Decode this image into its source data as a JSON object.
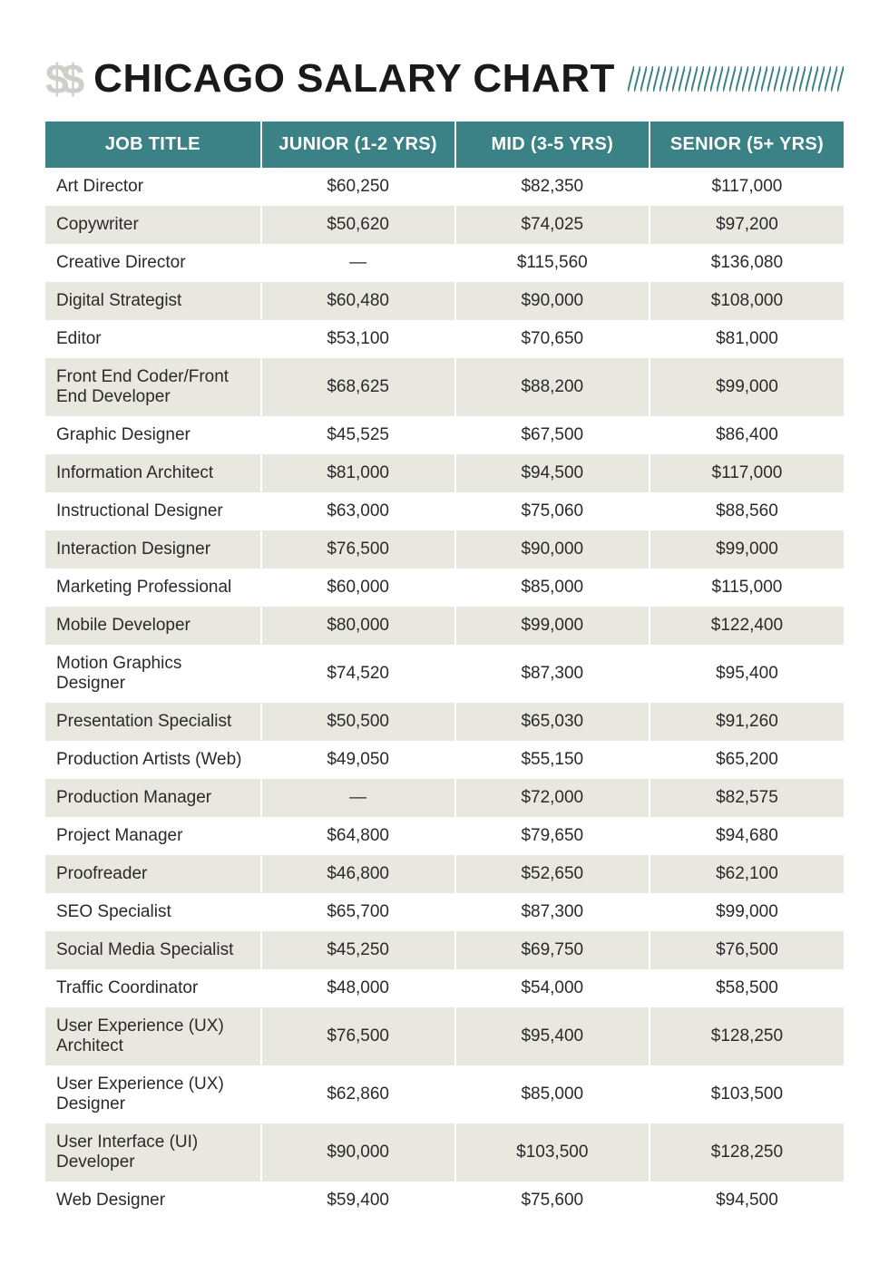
{
  "header": {
    "icon_text": "$$",
    "title": "CHICAGO SALARY CHART"
  },
  "colors": {
    "header_bg": "#3a8285",
    "header_text": "#ffffff",
    "row_even_bg": "#e8e8e1",
    "row_odd_bg": "#ffffff",
    "text": "#2a2a2a",
    "icon_gray": "#cfcfca",
    "hatch": "#3a8285"
  },
  "typography": {
    "title_fontsize": 44,
    "header_cell_fontsize": 20,
    "body_cell_fontsize": 19
  },
  "table": {
    "columns": [
      "JOB TITLE",
      "JUNIOR (1-2 YRS)",
      "MID (3-5 YRS)",
      "SENIOR (5+ YRS)"
    ],
    "col_widths_pct": [
      27,
      24.3,
      24.3,
      24.4
    ],
    "rows": [
      [
        "Art Director",
        "$60,250",
        "$82,350",
        "$117,000"
      ],
      [
        "Copywriter",
        "$50,620",
        "$74,025",
        "$97,200"
      ],
      [
        "Creative Director",
        "—",
        "$115,560",
        "$136,080"
      ],
      [
        "Digital Strategist",
        "$60,480",
        "$90,000",
        "$108,000"
      ],
      [
        "Editor",
        "$53,100",
        "$70,650",
        "$81,000"
      ],
      [
        "Front End Coder/Front End Developer",
        "$68,625",
        "$88,200",
        "$99,000"
      ],
      [
        "Graphic Designer",
        "$45,525",
        "$67,500",
        "$86,400"
      ],
      [
        "Information Architect",
        "$81,000",
        "$94,500",
        "$117,000"
      ],
      [
        "Instructional Designer",
        "$63,000",
        "$75,060",
        "$88,560"
      ],
      [
        "Interaction Designer",
        "$76,500",
        "$90,000",
        "$99,000"
      ],
      [
        "Marketing Professional",
        "$60,000",
        "$85,000",
        "$115,000"
      ],
      [
        "Mobile Developer",
        "$80,000",
        "$99,000",
        "$122,400"
      ],
      [
        "Motion Graphics Designer",
        "$74,520",
        "$87,300",
        "$95,400"
      ],
      [
        "Presentation Specialist",
        "$50,500",
        "$65,030",
        "$91,260"
      ],
      [
        "Production Artists (Web)",
        "$49,050",
        "$55,150",
        "$65,200"
      ],
      [
        "Production Manager",
        "—",
        "$72,000",
        "$82,575"
      ],
      [
        "Project Manager",
        "$64,800",
        "$79,650",
        "$94,680"
      ],
      [
        "Proofreader",
        "$46,800",
        "$52,650",
        "$62,100"
      ],
      [
        "SEO Specialist",
        "$65,700",
        "$87,300",
        "$99,000"
      ],
      [
        "Social Media Specialist",
        "$45,250",
        "$69,750",
        "$76,500"
      ],
      [
        "Traffic Coordinator",
        "$48,000",
        "$54,000",
        "$58,500"
      ],
      [
        "User Experience (UX) Architect",
        "$76,500",
        "$95,400",
        "$128,250"
      ],
      [
        "User Experience (UX) Designer",
        "$62,860",
        "$85,000",
        "$103,500"
      ],
      [
        "User Interface (UI) Developer",
        "$90,000",
        "$103,500",
        "$128,250"
      ],
      [
        "Web Designer",
        "$59,400",
        "$75,600",
        "$94,500"
      ]
    ]
  }
}
